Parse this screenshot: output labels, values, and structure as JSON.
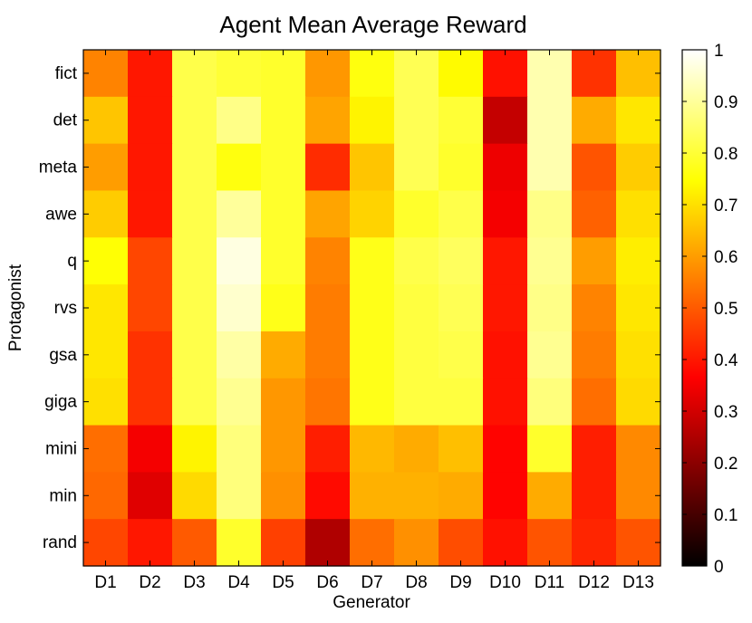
{
  "chart_data": {
    "type": "heatmap",
    "title": "Agent Mean Average Reward",
    "xlabel": "Generator",
    "ylabel": "Protagonist",
    "x_categories": [
      "D1",
      "D2",
      "D3",
      "D4",
      "D5",
      "D6",
      "D7",
      "D8",
      "D9",
      "D10",
      "D11",
      "D12",
      "D13"
    ],
    "y_categories": [
      "fict",
      "det",
      "meta",
      "awe",
      "q",
      "rvs",
      "gsa",
      "giga",
      "mini",
      "min",
      "rand"
    ],
    "colorbar": {
      "min": 0,
      "max": 1,
      "ticks": [
        "0",
        "0.1",
        "0.2",
        "0.3",
        "0.4",
        "0.5",
        "0.6",
        "0.7",
        "0.8",
        "0.9",
        "1"
      ],
      "colormap": "hot"
    },
    "values": [
      [
        0.56,
        0.4,
        0.82,
        0.8,
        0.79,
        0.59,
        0.76,
        0.83,
        0.74,
        0.39,
        0.92,
        0.44,
        0.65
      ],
      [
        0.66,
        0.4,
        0.82,
        0.88,
        0.79,
        0.61,
        0.73,
        0.83,
        0.8,
        0.28,
        0.92,
        0.62,
        0.71
      ],
      [
        0.6,
        0.4,
        0.82,
        0.76,
        0.79,
        0.43,
        0.66,
        0.83,
        0.79,
        0.34,
        0.92,
        0.49,
        0.67
      ],
      [
        0.67,
        0.4,
        0.82,
        0.9,
        0.79,
        0.61,
        0.68,
        0.79,
        0.82,
        0.35,
        0.88,
        0.51,
        0.7
      ],
      [
        0.75,
        0.47,
        0.82,
        0.97,
        0.79,
        0.56,
        0.77,
        0.82,
        0.84,
        0.4,
        0.89,
        0.6,
        0.72
      ],
      [
        0.71,
        0.47,
        0.82,
        0.95,
        0.77,
        0.55,
        0.77,
        0.81,
        0.83,
        0.4,
        0.88,
        0.56,
        0.71
      ],
      [
        0.71,
        0.44,
        0.82,
        0.91,
        0.62,
        0.55,
        0.77,
        0.81,
        0.82,
        0.39,
        0.89,
        0.55,
        0.7
      ],
      [
        0.7,
        0.44,
        0.82,
        0.89,
        0.59,
        0.54,
        0.77,
        0.81,
        0.81,
        0.39,
        0.87,
        0.53,
        0.69
      ],
      [
        0.53,
        0.35,
        0.73,
        0.87,
        0.59,
        0.41,
        0.64,
        0.62,
        0.65,
        0.37,
        0.79,
        0.41,
        0.57
      ],
      [
        0.52,
        0.32,
        0.69,
        0.87,
        0.58,
        0.38,
        0.63,
        0.63,
        0.62,
        0.37,
        0.62,
        0.41,
        0.57
      ],
      [
        0.47,
        0.4,
        0.5,
        0.79,
        0.46,
        0.25,
        0.53,
        0.58,
        0.48,
        0.39,
        0.49,
        0.42,
        0.49
      ]
    ]
  }
}
